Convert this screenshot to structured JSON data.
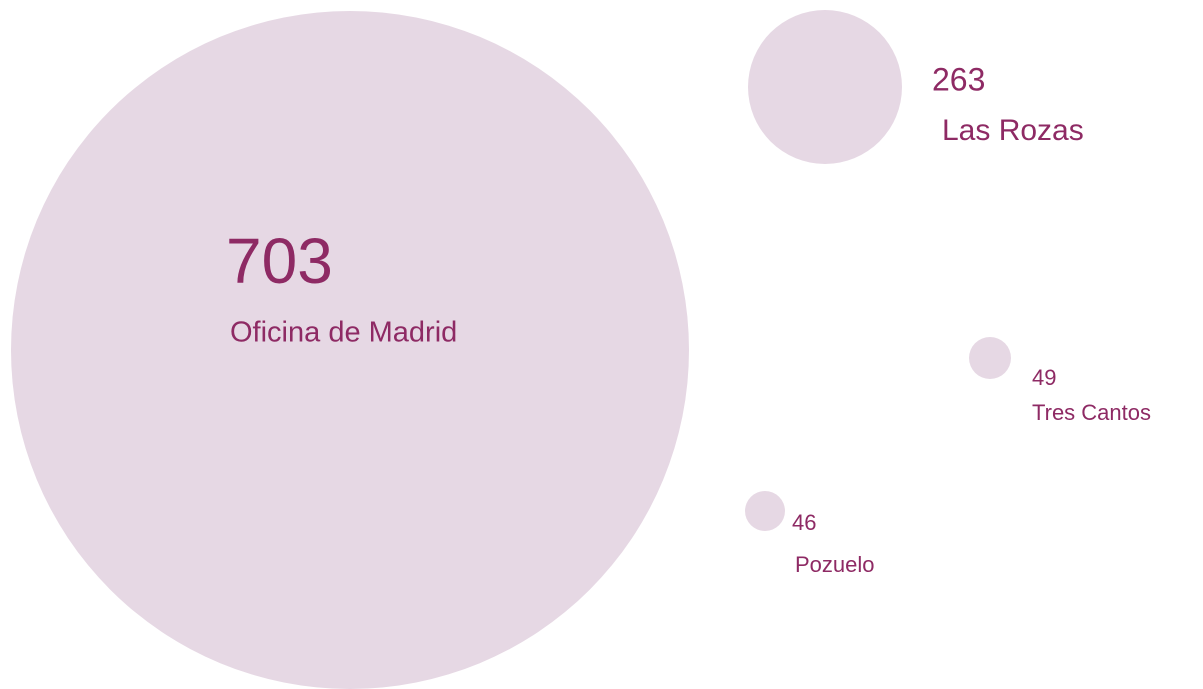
{
  "chart_data": {
    "type": "bubble",
    "categories": [
      "Oficina de Madrid",
      "Las Rozas",
      "Tres Cantos",
      "Pozuelo"
    ],
    "values": [
      703,
      263,
      49,
      46
    ],
    "color": "#e6d8e4",
    "label_color": "#8e2a64"
  }
}
